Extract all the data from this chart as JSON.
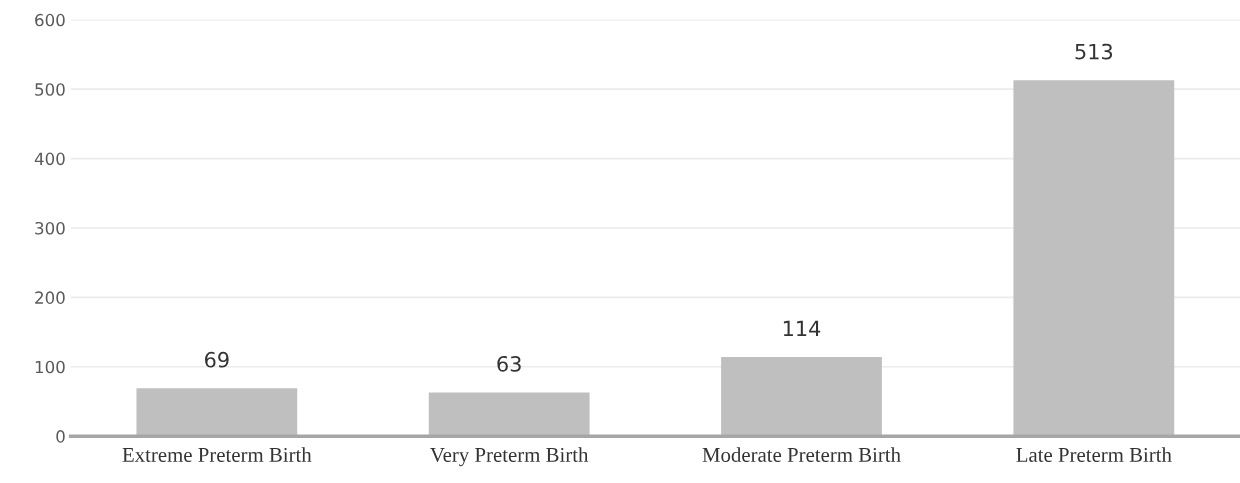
{
  "chart_data": {
    "type": "bar",
    "categories": [
      "Extreme Preterm Birth",
      "Very Preterm Birth",
      "Moderate Preterm Birth",
      "Late Preterm Birth"
    ],
    "values": [
      69,
      63,
      114,
      513
    ],
    "color": "#bfbfbf",
    "ylim": [
      0,
      600
    ],
    "yticks": [
      0,
      100,
      200,
      300,
      400,
      500,
      600
    ],
    "grid": "y",
    "data_labels": true
  }
}
